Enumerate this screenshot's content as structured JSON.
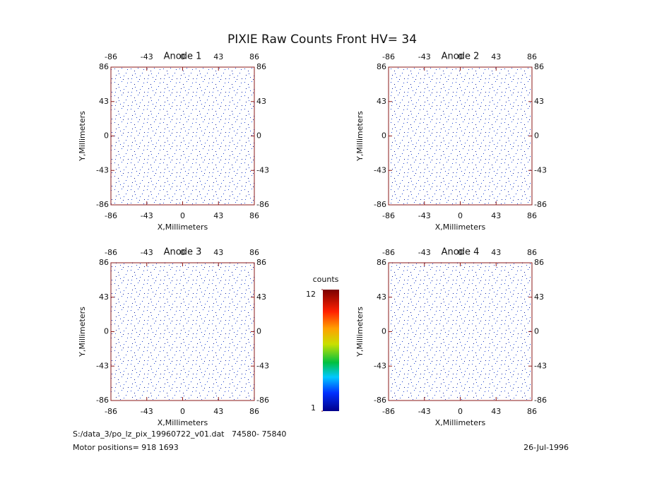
{
  "title": "PIXIE Raw Counts Front HV= 34",
  "chart_data": [
    {
      "type": "heatmap",
      "title": "Anode 1",
      "xlabel": "X,Millimeters",
      "ylabel": "Y,Millimeters",
      "xlim": [
        -86,
        86
      ],
      "ylim": [
        -86,
        86
      ],
      "xticks": [
        -86,
        -43,
        0,
        43,
        86
      ],
      "yticks": [
        -86,
        -43,
        0,
        43,
        86
      ]
    },
    {
      "type": "heatmap",
      "title": "Anode 2",
      "xlabel": "X,Millimeters",
      "ylabel": "Y,Millimeters",
      "xlim": [
        -86,
        86
      ],
      "ylim": [
        -86,
        86
      ],
      "xticks": [
        -86,
        -43,
        0,
        43,
        86
      ],
      "yticks": [
        -86,
        -43,
        0,
        43,
        86
      ]
    },
    {
      "type": "heatmap",
      "title": "Anode 3",
      "xlabel": "X,Millimeters",
      "ylabel": "Y,Millimeters",
      "xlim": [
        -86,
        86
      ],
      "ylim": [
        -86,
        86
      ],
      "xticks": [
        -86,
        -43,
        0,
        43,
        86
      ],
      "yticks": [
        -86,
        -43,
        0,
        43,
        86
      ]
    },
    {
      "type": "heatmap",
      "title": "Anode 4",
      "xlabel": "X,Millimeters",
      "ylabel": "Y,Millimeters",
      "xlim": [
        -86,
        86
      ],
      "ylim": [
        -86,
        86
      ],
      "xticks": [
        -86,
        -43,
        0,
        43,
        86
      ],
      "yticks": [
        -86,
        -43,
        0,
        43,
        86
      ]
    }
  ],
  "colorbar": {
    "label": "counts",
    "clim": [
      1,
      12
    ],
    "ticks": [
      1,
      12
    ]
  },
  "footer": {
    "file": "S:/data_3/po_lz_pix_19960722_v01.dat   74580- 75840",
    "motor": "Motor positions= 918 1693",
    "date": "26-Jul-1996"
  }
}
